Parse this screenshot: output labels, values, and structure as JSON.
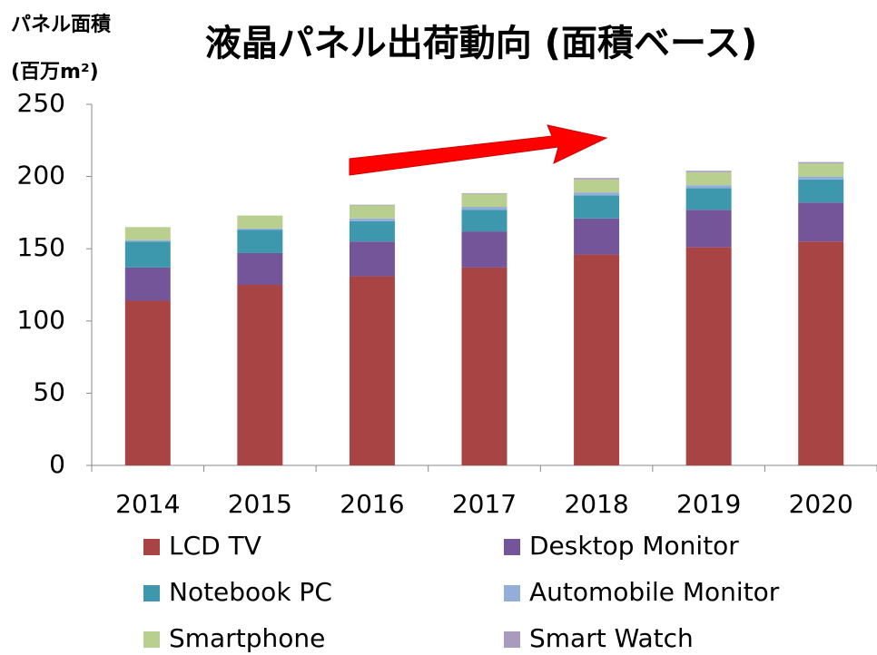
{
  "chart_data": {
    "type": "stacked_bar",
    "title": "液晶パネル出荷動向 (面積ベース)",
    "ylabel": [
      "パネル面積",
      "(百万m²)"
    ],
    "categories": [
      "2014",
      "2015",
      "2016",
      "2017",
      "2018",
      "2019",
      "2020"
    ],
    "series": [
      {
        "name": "LCD TV",
        "color": "#a84444",
        "values": [
          114,
          125,
          131,
          137,
          146,
          151,
          155
        ]
      },
      {
        "name": "Desktop Monitor",
        "color": "#74559a",
        "values": [
          23,
          22,
          24,
          25,
          25,
          26,
          27
        ]
      },
      {
        "name": "Notebook PC",
        "color": "#3d97ad",
        "values": [
          18,
          16,
          14,
          15,
          16,
          15,
          16
        ]
      },
      {
        "name": "Automobile Monitor",
        "color": "#93aed8",
        "values": [
          1,
          1,
          2,
          2,
          2,
          2,
          2
        ]
      },
      {
        "name": "Smartphone",
        "color": "#b8cf8f",
        "values": [
          9,
          9,
          9,
          9,
          9,
          9,
          9
        ]
      },
      {
        "name": "Smart Watch",
        "color": "#a99bbd",
        "values": [
          0,
          0,
          0.5,
          0.5,
          1,
          1,
          1
        ]
      }
    ],
    "ylim": [
      0,
      250
    ],
    "yticks": [
      0,
      50,
      100,
      150,
      200,
      250
    ],
    "grid": false
  }
}
